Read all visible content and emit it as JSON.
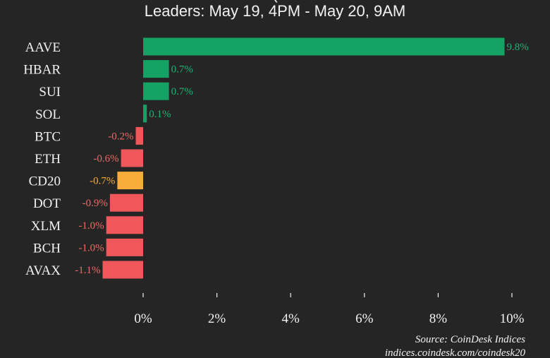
{
  "chart_data": {
    "type": "bar",
    "orientation": "horizontal",
    "title_partial": "(",
    "subtitle": "Leaders: May 19, 4PM - May 20, 9AM",
    "categories": [
      "AAVE",
      "HBAR",
      "SUI",
      "SOL",
      "BTC",
      "ETH",
      "CD20",
      "DOT",
      "XLM",
      "BCH",
      "AVAX"
    ],
    "values": [
      9.8,
      0.7,
      0.7,
      0.1,
      -0.2,
      -0.6,
      -0.7,
      -0.9,
      -1.0,
      -1.0,
      -1.1
    ],
    "value_labels": [
      "9.8%",
      "0.7%",
      "0.7%",
      "0.1%",
      "-0.2%",
      "-0.6%",
      "-0.7%",
      "-0.9%",
      "-1.0%",
      "-1.0%",
      "-1.1%"
    ],
    "x_ticks": [
      0,
      2,
      4,
      6,
      8,
      10
    ],
    "x_tick_labels": [
      "0%",
      "2%",
      "4%",
      "6%",
      "8%",
      "10%"
    ],
    "xlim": [
      -1.1,
      10
    ],
    "highlight_category": "CD20",
    "colors": {
      "positive": "#15a365",
      "negative": "#f0575b",
      "highlight": "#f8ac3a",
      "positive_text": "#1eb473",
      "negative_text": "#f06a64",
      "highlight_text": "#f8ac3a",
      "background": "#252525",
      "text": "#f2f2f2"
    },
    "source_line1": "Source: CoinDesk Indices",
    "source_line2": "indices.coindesk.com/coindesk20"
  }
}
